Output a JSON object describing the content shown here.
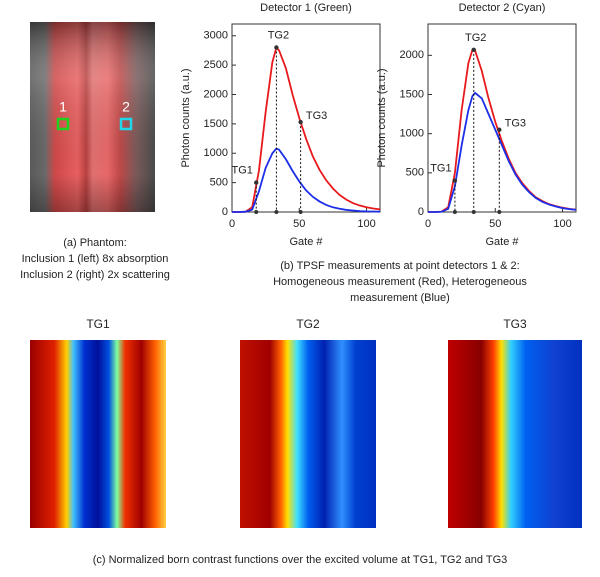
{
  "chart_data": [
    {
      "type": "line",
      "title": "Detector 1 (Green)",
      "xlabel": "Gate #",
      "ylabel": "Photon counts (a.u.)",
      "x": [
        0,
        5,
        10,
        15,
        20,
        25,
        30,
        33,
        35,
        40,
        45,
        50,
        55,
        60,
        65,
        70,
        75,
        80,
        85,
        90,
        95,
        100,
        105,
        110
      ],
      "xlim": [
        0,
        110
      ],
      "xticks": [
        0,
        50,
        100
      ],
      "ylim": [
        0,
        3200
      ],
      "yticks": [
        0,
        500,
        1000,
        1500,
        2000,
        2500,
        3000
      ],
      "series": [
        {
          "color": "#e8191c",
          "values": [
            0,
            0,
            5,
            80,
            700,
            1700,
            2550,
            2800,
            2750,
            2450,
            2000,
            1600,
            1250,
            950,
            720,
            540,
            400,
            290,
            210,
            150,
            110,
            80,
            60,
            45
          ]
        },
        {
          "color": "#1c2ee8",
          "values": [
            0,
            0,
            3,
            40,
            350,
            750,
            1000,
            1080,
            1060,
            900,
            700,
            520,
            370,
            260,
            180,
            120,
            80,
            55,
            35,
            25,
            15,
            10,
            8,
            5
          ]
        }
      ],
      "annotations": [
        {
          "text": "TG1",
          "x": 18,
          "y": 500
        },
        {
          "text": "TG2",
          "x": 33,
          "y": 2800
        },
        {
          "text": "TG3",
          "x": 51,
          "y": 1530
        }
      ]
    },
    {
      "type": "line",
      "title": "Detector 2 (Cyan)",
      "xlabel": "Gate #",
      "ylabel": "Photon counts (a.u.)",
      "x": [
        0,
        5,
        10,
        15,
        20,
        25,
        30,
        33,
        35,
        40,
        45,
        50,
        55,
        60,
        65,
        70,
        75,
        80,
        85,
        90,
        95,
        100,
        105,
        110
      ],
      "xlim": [
        0,
        110
      ],
      "xticks": [
        0,
        50,
        100
      ],
      "ylim": [
        0,
        2400
      ],
      "yticks": [
        0,
        500,
        1000,
        1500,
        2000
      ],
      "series": [
        {
          "color": "#e8191c",
          "values": [
            0,
            0,
            5,
            60,
            500,
            1300,
            1900,
            2070,
            2060,
            1800,
            1450,
            1150,
            900,
            680,
            500,
            370,
            270,
            190,
            140,
            100,
            75,
            55,
            40,
            30
          ]
        },
        {
          "color": "#1c2ee8",
          "values": [
            0,
            0,
            3,
            40,
            330,
            850,
            1300,
            1480,
            1520,
            1450,
            1250,
            1050,
            850,
            650,
            480,
            350,
            255,
            180,
            130,
            95,
            70,
            50,
            37,
            28
          ]
        }
      ],
      "annotations": [
        {
          "text": "TG1",
          "x": 20,
          "y": 400
        },
        {
          "text": "TG2",
          "x": 34,
          "y": 2070
        },
        {
          "text": "TG3",
          "x": 53,
          "y": 1050
        }
      ]
    }
  ],
  "phantom": {
    "labels": [
      "1",
      "2"
    ]
  },
  "caption_a": [
    "(a) Phantom:",
    "Inclusion 1 (left) 8x absorption",
    "Inclusion 2 (right) 2x scattering"
  ],
  "caption_b": [
    "(b) TPSF measurements at point detectors 1 & 2:",
    "Homogeneous measurement (Red), Heterogeneous",
    "measurement (Blue)"
  ],
  "maps": {
    "titles": [
      "TG1",
      "TG2",
      "TG3"
    ]
  },
  "caption_c": "(c) Normalized born contrast functions over the excited volume at TG1, TG2 and TG3"
}
